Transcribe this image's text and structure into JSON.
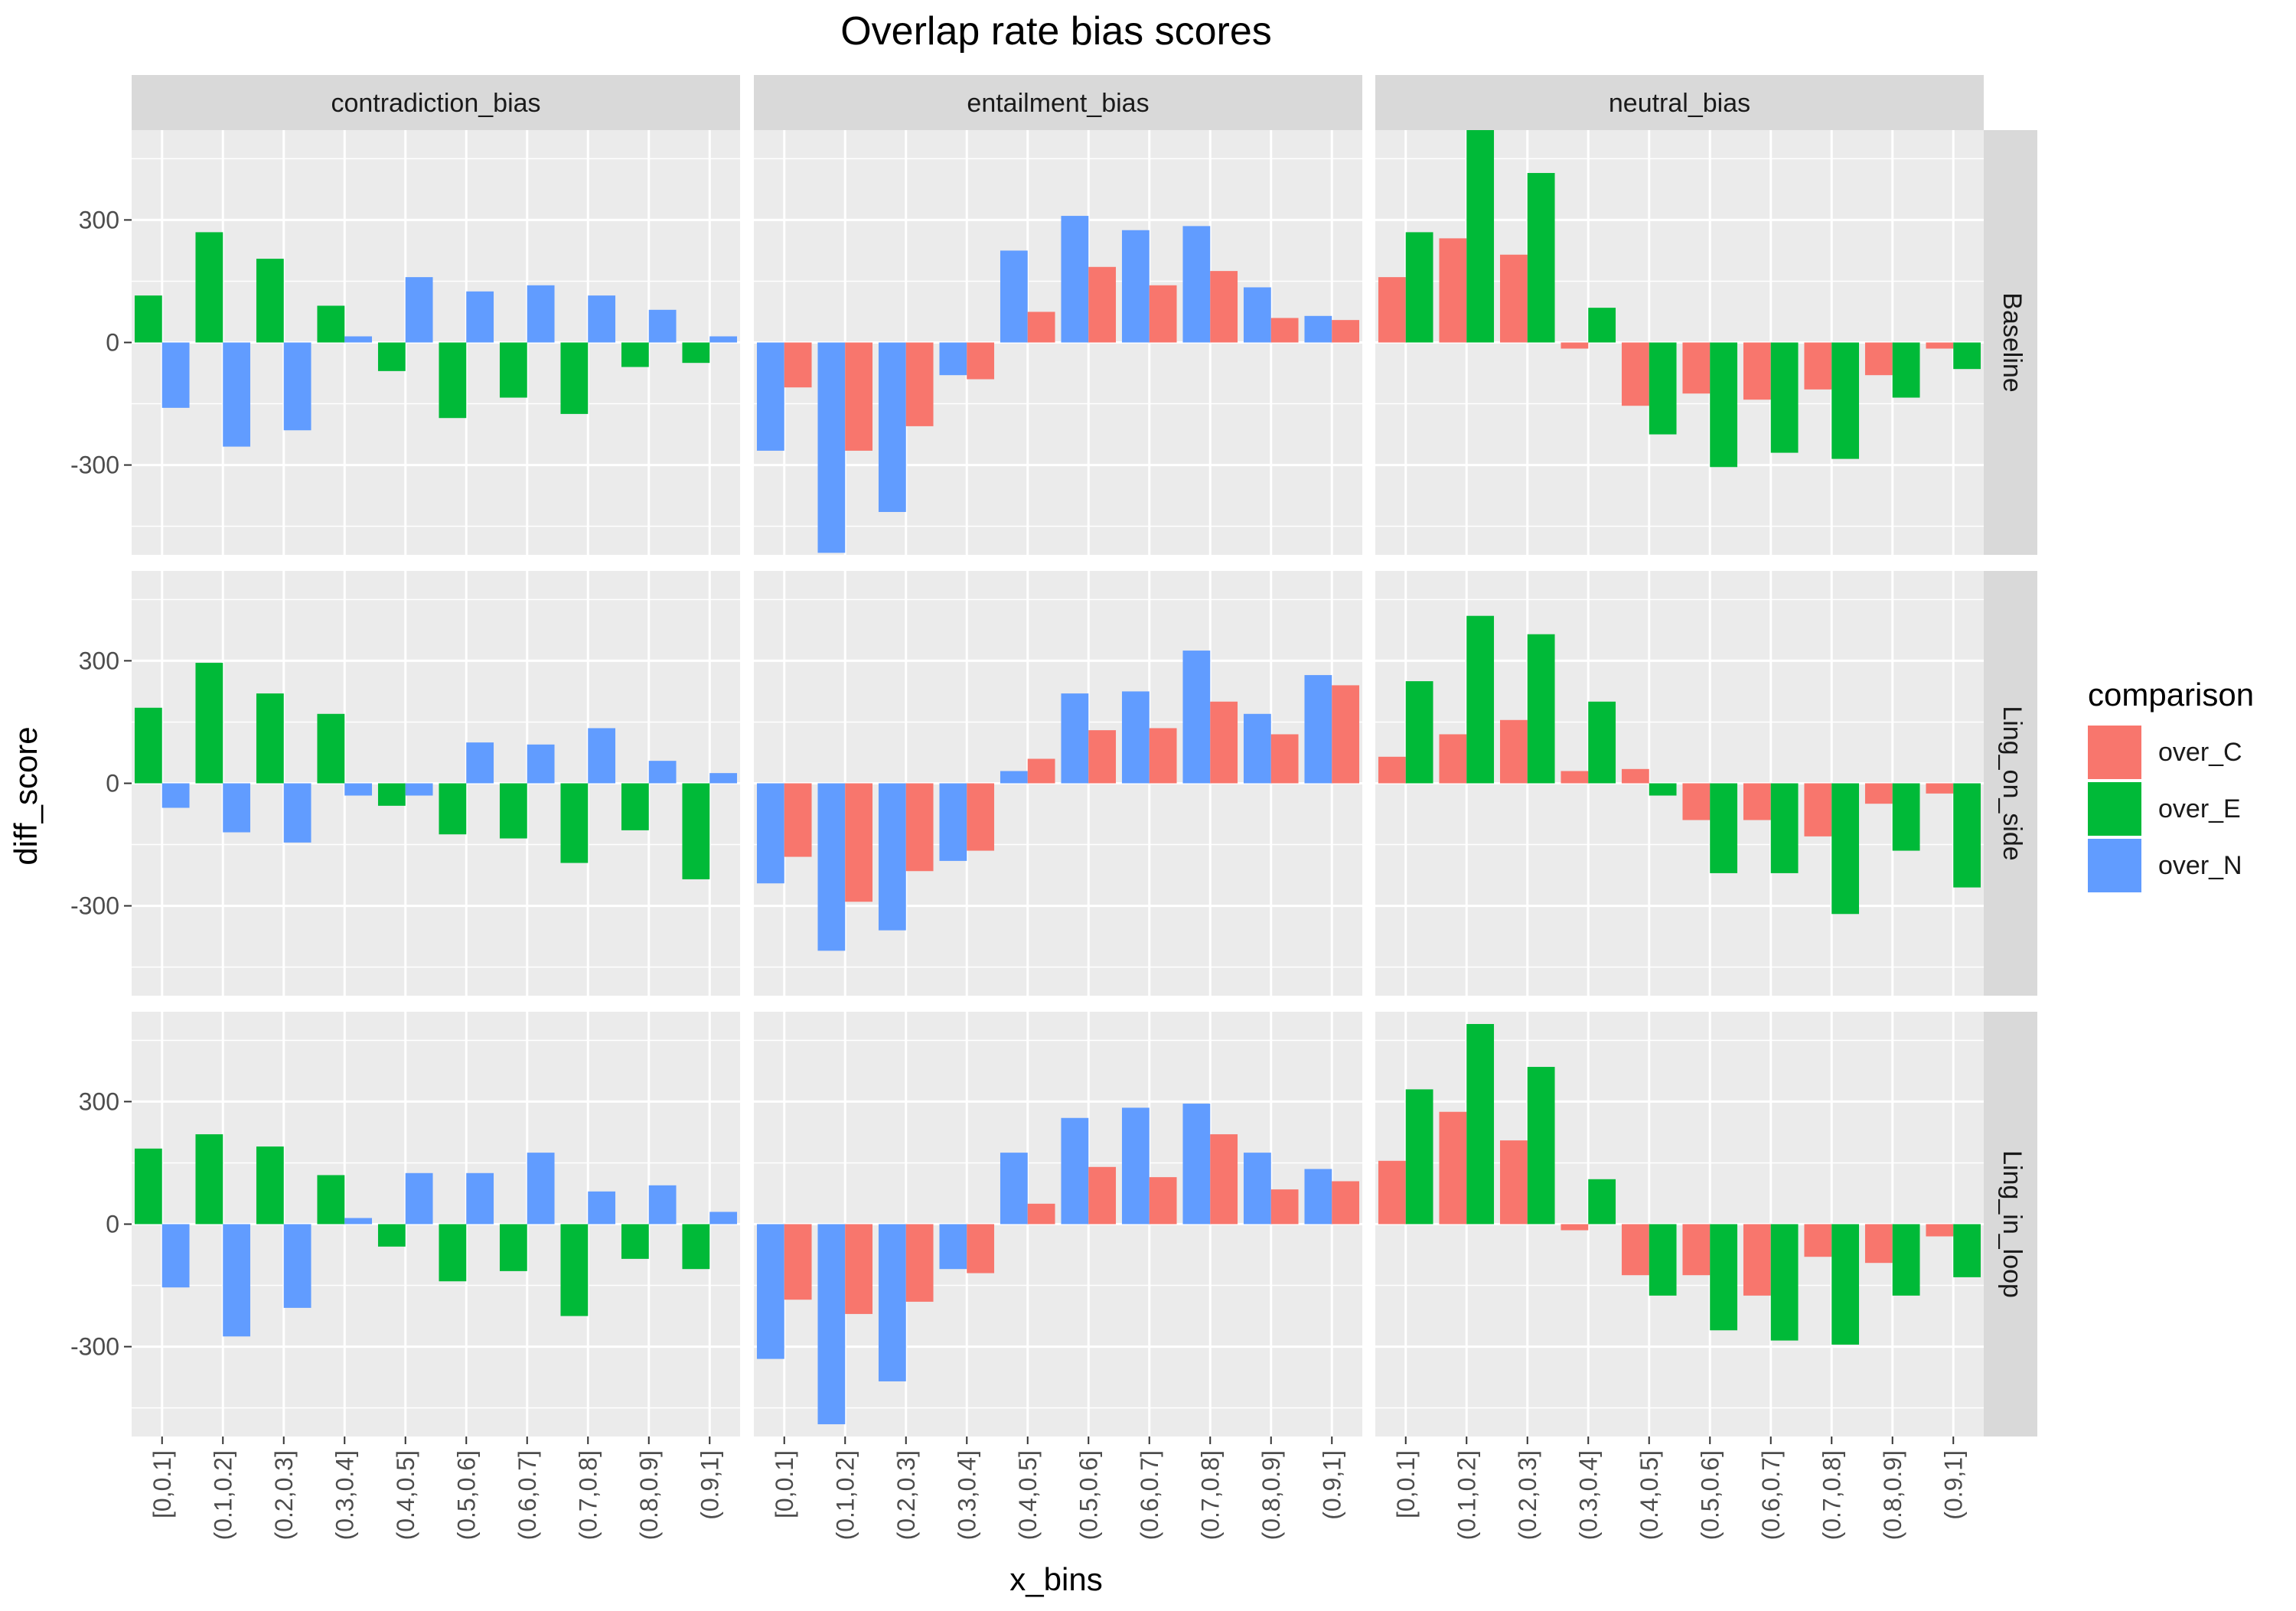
{
  "chart_data": {
    "type": "bar",
    "title": "Overlap rate bias scores",
    "xlabel": "x_bins",
    "ylabel": "diff_score",
    "categories": [
      "[0,0.1]",
      "(0.1,0.2]",
      "(0.2,0.3]",
      "(0.3,0.4]",
      "(0.4,0.5]",
      "(0.5,0.6]",
      "(0.6,0.7]",
      "(0.7,0.8]",
      "(0.8,0.9]",
      "(0.9,1]"
    ],
    "ylim": [
      -520,
      520
    ],
    "yticks": [
      -300,
      0,
      300
    ],
    "ytick_labels": [
      "-300",
      "0",
      "300"
    ],
    "legend": {
      "title": "comparison",
      "position": "right",
      "entries": [
        "over_C",
        "over_E",
        "over_N"
      ]
    },
    "colors": {
      "over_C": "#F8766D",
      "over_E": "#00BA38",
      "over_N": "#619CFF"
    },
    "columns": [
      "contradiction_bias",
      "entailment_bias",
      "neutral_bias"
    ],
    "rows": [
      "Baseline",
      "Ling_on_side",
      "Ling_in_loop"
    ],
    "panels": [
      {
        "column": "contradiction_bias",
        "row": "Baseline",
        "series": [
          {
            "name": "over_E",
            "values": [
              115,
              270,
              205,
              90,
              -70,
              -185,
              -135,
              -175,
              -60,
              -50
            ]
          },
          {
            "name": "over_N",
            "values": [
              -160,
              -255,
              -215,
              15,
              160,
              125,
              140,
              115,
              80,
              15
            ]
          }
        ]
      },
      {
        "column": "entailment_bias",
        "row": "Baseline",
        "series": [
          {
            "name": "over_N",
            "values": [
              -265,
              -515,
              -415,
              -80,
              225,
              310,
              275,
              285,
              135,
              65
            ]
          },
          {
            "name": "over_C",
            "values": [
              -110,
              -265,
              -205,
              -90,
              75,
              185,
              140,
              175,
              60,
              55
            ]
          }
        ]
      },
      {
        "column": "neutral_bias",
        "row": "Baseline",
        "series": [
          {
            "name": "over_C",
            "values": [
              160,
              255,
              215,
              -15,
              -155,
              -125,
              -140,
              -115,
              -80,
              -15
            ]
          },
          {
            "name": "over_E",
            "values": [
              270,
              520,
              415,
              85,
              -225,
              -305,
              -270,
              -285,
              -135,
              -65
            ]
          }
        ]
      },
      {
        "column": "contradiction_bias",
        "row": "Ling_on_side",
        "series": [
          {
            "name": "over_E",
            "values": [
              185,
              295,
              220,
              170,
              -55,
              -125,
              -135,
              -195,
              -115,
              -235
            ]
          },
          {
            "name": "over_N",
            "values": [
              -60,
              -120,
              -145,
              -30,
              -30,
              100,
              95,
              135,
              55,
              25
            ]
          }
        ]
      },
      {
        "column": "entailment_bias",
        "row": "Ling_on_side",
        "series": [
          {
            "name": "over_N",
            "values": [
              -245,
              -410,
              -360,
              -190,
              30,
              220,
              225,
              325,
              170,
              265
            ]
          },
          {
            "name": "over_C",
            "values": [
              -180,
              -290,
              -215,
              -165,
              60,
              130,
              135,
              200,
              120,
              240
            ]
          }
        ]
      },
      {
        "column": "neutral_bias",
        "row": "Ling_on_side",
        "series": [
          {
            "name": "over_C",
            "values": [
              65,
              120,
              155,
              30,
              35,
              -90,
              -90,
              -130,
              -50,
              -25
            ]
          },
          {
            "name": "over_E",
            "values": [
              250,
              410,
              365,
              200,
              -30,
              -220,
              -220,
              -320,
              -165,
              -255
            ]
          }
        ]
      },
      {
        "column": "contradiction_bias",
        "row": "Ling_in_loop",
        "series": [
          {
            "name": "over_E",
            "values": [
              185,
              220,
              190,
              120,
              -55,
              -140,
              -115,
              -225,
              -85,
              -110
            ]
          },
          {
            "name": "over_N",
            "values": [
              -155,
              -275,
              -205,
              15,
              125,
              125,
              175,
              80,
              95,
              30
            ]
          }
        ]
      },
      {
        "column": "entailment_bias",
        "row": "Ling_in_loop",
        "series": [
          {
            "name": "over_N",
            "values": [
              -330,
              -490,
              -385,
              -110,
              175,
              260,
              285,
              295,
              175,
              135
            ]
          },
          {
            "name": "over_C",
            "values": [
              -185,
              -220,
              -190,
              -120,
              50,
              140,
              115,
              220,
              85,
              105
            ]
          }
        ]
      },
      {
        "column": "neutral_bias",
        "row": "Ling_in_loop",
        "series": [
          {
            "name": "over_C",
            "values": [
              155,
              275,
              205,
              -15,
              -125,
              -125,
              -175,
              -80,
              -95,
              -30
            ]
          },
          {
            "name": "over_E",
            "values": [
              330,
              490,
              385,
              110,
              -175,
              -260,
              -285,
              -295,
              -175,
              -130
            ]
          }
        ]
      }
    ]
  }
}
